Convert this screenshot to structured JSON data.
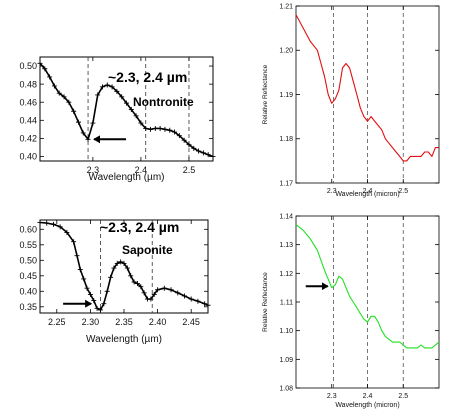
{
  "chart_data": [
    {
      "id": "nontronite-lab",
      "type": "line",
      "title": "",
      "annotation_wavelengths": "~2.3, 2.4 µm",
      "mineral_label": "Nontronite",
      "xlabel": "Wavelength (µm)",
      "ylabel": "",
      "xlim": [
        2.19,
        2.55
      ],
      "ylim": [
        0.395,
        0.51
      ],
      "xticks": [
        2.3,
        2.4,
        2.5
      ],
      "xtick_labels": [
        "2.3",
        "2.4",
        "2.5"
      ],
      "yticks": [
        0.4,
        0.42,
        0.44,
        0.46,
        0.48,
        0.5
      ],
      "ytick_labels": [
        "0.40",
        "0.42",
        "0.44",
        "0.46",
        "0.48",
        "0.50"
      ],
      "vlines": [
        2.29,
        2.41,
        2.5
      ],
      "arrow_at": [
        2.29,
        0.419
      ],
      "marker": "plus",
      "color": "#000000",
      "x": [
        2.19,
        2.2,
        2.21,
        2.22,
        2.23,
        2.24,
        2.25,
        2.26,
        2.27,
        2.28,
        2.29,
        2.3,
        2.31,
        2.32,
        2.33,
        2.34,
        2.35,
        2.36,
        2.37,
        2.38,
        2.39,
        2.4,
        2.41,
        2.42,
        2.43,
        2.44,
        2.45,
        2.46,
        2.47,
        2.48,
        2.49,
        2.5,
        2.51,
        2.52,
        2.53,
        2.54,
        2.55
      ],
      "y": [
        0.503,
        0.497,
        0.488,
        0.478,
        0.47,
        0.466,
        0.46,
        0.45,
        0.438,
        0.426,
        0.419,
        0.437,
        0.468,
        0.477,
        0.479,
        0.477,
        0.472,
        0.466,
        0.459,
        0.452,
        0.445,
        0.437,
        0.431,
        0.43,
        0.431,
        0.431,
        0.43,
        0.429,
        0.427,
        0.423,
        0.418,
        0.413,
        0.409,
        0.406,
        0.404,
        0.402,
        0.4
      ]
    },
    {
      "id": "saponite-lab",
      "type": "line",
      "title": "",
      "annotation_wavelengths": "~2.3, 2.4 µm",
      "mineral_label": "Saponite",
      "xlabel": "Wavelength (µm)",
      "ylabel": "",
      "xlim": [
        2.225,
        2.475
      ],
      "ylim": [
        0.33,
        0.63
      ],
      "xticks": [
        2.25,
        2.3,
        2.35,
        2.4,
        2.45
      ],
      "xtick_labels": [
        "2.25",
        "2.30",
        "2.35",
        "2.40",
        "2.45"
      ],
      "yticks": [
        0.35,
        0.4,
        0.45,
        0.5,
        0.55,
        0.6
      ],
      "ytick_labels": [
        "0.35",
        "0.40",
        "0.45",
        "0.50",
        "0.55",
        "0.60"
      ],
      "vlines": [
        2.315,
        2.392
      ],
      "arrow_at": [
        2.31,
        0.36
      ],
      "marker": "plus",
      "color": "#000000",
      "x": [
        2.225,
        2.235,
        2.245,
        2.255,
        2.265,
        2.275,
        2.28,
        2.285,
        2.29,
        2.295,
        2.3,
        2.305,
        2.31,
        2.315,
        2.32,
        2.325,
        2.33,
        2.335,
        2.34,
        2.345,
        2.35,
        2.355,
        2.36,
        2.365,
        2.37,
        2.375,
        2.38,
        2.385,
        2.39,
        2.395,
        2.4,
        2.41,
        2.42,
        2.43,
        2.44,
        2.45,
        2.46,
        2.47,
        2.475
      ],
      "y": [
        0.622,
        0.62,
        0.616,
        0.608,
        0.59,
        0.56,
        0.515,
        0.47,
        0.44,
        0.41,
        0.39,
        0.37,
        0.345,
        0.34,
        0.36,
        0.4,
        0.445,
        0.475,
        0.49,
        0.495,
        0.49,
        0.475,
        0.45,
        0.43,
        0.425,
        0.415,
        0.395,
        0.375,
        0.375,
        0.39,
        0.405,
        0.41,
        0.405,
        0.395,
        0.385,
        0.375,
        0.368,
        0.36,
        0.355
      ]
    },
    {
      "id": "crism-red",
      "type": "line",
      "title": "",
      "xlabel": "Wavelength (micron)",
      "ylabel": "Relative Reflectance",
      "xlim": [
        2.2,
        2.6
      ],
      "ylim": [
        1.17,
        1.21
      ],
      "xticks": [
        2.3,
        2.4,
        2.5
      ],
      "xtick_labels": [
        "2.3",
        "2.4",
        "2.5"
      ],
      "yticks": [
        1.17,
        1.18,
        1.19,
        1.2,
        1.21
      ],
      "ytick_labels": [
        "1.17",
        "1.18",
        "1.19",
        "1.20",
        "1.21"
      ],
      "vlines": [
        2.305,
        2.4,
        2.5
      ],
      "color": "#e01010",
      "x": [
        2.2,
        2.22,
        2.24,
        2.26,
        2.27,
        2.28,
        2.29,
        2.3,
        2.31,
        2.32,
        2.33,
        2.34,
        2.35,
        2.36,
        2.37,
        2.38,
        2.39,
        2.4,
        2.41,
        2.42,
        2.43,
        2.44,
        2.45,
        2.46,
        2.47,
        2.48,
        2.49,
        2.5,
        2.51,
        2.52,
        2.53,
        2.54,
        2.55,
        2.56,
        2.57,
        2.58,
        2.59,
        2.6
      ],
      "y": [
        1.208,
        1.205,
        1.202,
        1.2,
        1.197,
        1.194,
        1.19,
        1.188,
        1.189,
        1.191,
        1.196,
        1.197,
        1.196,
        1.193,
        1.19,
        1.187,
        1.185,
        1.184,
        1.185,
        1.184,
        1.183,
        1.182,
        1.18,
        1.179,
        1.178,
        1.177,
        1.176,
        1.175,
        1.175,
        1.176,
        1.176,
        1.176,
        1.176,
        1.177,
        1.177,
        1.176,
        1.178,
        1.178
      ]
    },
    {
      "id": "crism-green",
      "type": "line",
      "title": "",
      "xlabel": "Wavelength (micron)",
      "ylabel": "Relative Reflectance",
      "xlim": [
        2.2,
        2.6
      ],
      "ylim": [
        1.08,
        1.14
      ],
      "xticks": [
        2.3,
        2.4,
        2.5
      ],
      "xtick_labels": [
        "2.3",
        "2.4",
        "2.5"
      ],
      "yticks": [
        1.08,
        1.09,
        1.1,
        1.11,
        1.12,
        1.13,
        1.14
      ],
      "ytick_labels": [
        "1.08",
        "1.09",
        "1.10",
        "1.11",
        "1.12",
        "1.13",
        "1.14"
      ],
      "vlines": [
        2.305,
        2.4,
        2.5
      ],
      "arrow_at": [
        2.3,
        1.1155
      ],
      "color": "#22e022",
      "x": [
        2.2,
        2.22,
        2.24,
        2.26,
        2.28,
        2.29,
        2.3,
        2.31,
        2.32,
        2.33,
        2.34,
        2.35,
        2.36,
        2.37,
        2.38,
        2.39,
        2.4,
        2.41,
        2.42,
        2.43,
        2.44,
        2.45,
        2.46,
        2.47,
        2.48,
        2.49,
        2.5,
        2.51,
        2.52,
        2.53,
        2.54,
        2.55,
        2.56,
        2.57,
        2.58,
        2.59,
        2.6
      ],
      "y": [
        1.137,
        1.135,
        1.132,
        1.128,
        1.121,
        1.118,
        1.115,
        1.116,
        1.119,
        1.118,
        1.115,
        1.112,
        1.11,
        1.108,
        1.106,
        1.104,
        1.103,
        1.105,
        1.105,
        1.103,
        1.1,
        1.098,
        1.097,
        1.096,
        1.096,
        1.096,
        1.095,
        1.094,
        1.094,
        1.094,
        1.094,
        1.095,
        1.094,
        1.094,
        1.094,
        1.095,
        1.096
      ]
    }
  ]
}
